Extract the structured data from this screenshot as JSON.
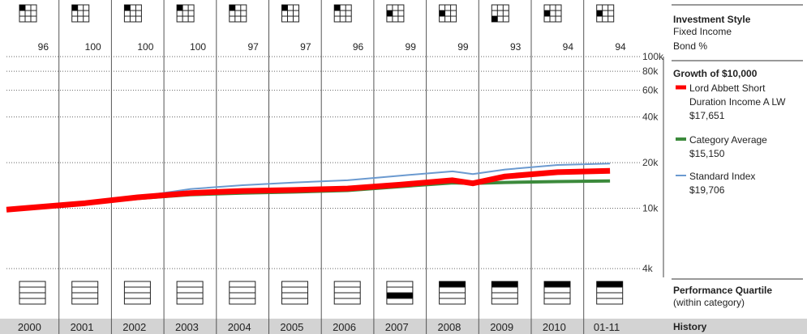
{
  "chart_data": {
    "type": "line",
    "x_labels": [
      "2000",
      "2001",
      "2002",
      "2003",
      "2004",
      "2005",
      "2006",
      "2007",
      "2008",
      "2009",
      "2010",
      "01-11"
    ],
    "y_scale": "log",
    "ylim": [
      3500,
      100000
    ],
    "y_ticks": [
      {
        "value": 100000,
        "label": "100k"
      },
      {
        "value": 80000,
        "label": "80k"
      },
      {
        "value": 60000,
        "label": "60k"
      },
      {
        "value": 40000,
        "label": "40k"
      },
      {
        "value": 20000,
        "label": "20k"
      },
      {
        "value": 10000,
        "label": "10k"
      },
      {
        "value": 4000,
        "label": "4k"
      }
    ],
    "bond_pct": [
      "96",
      "100",
      "100",
      "100",
      "97",
      "97",
      "96",
      "99",
      "99",
      "93",
      "94",
      "94"
    ],
    "style_box_cell": [
      0,
      0,
      0,
      0,
      0,
      0,
      0,
      3,
      3,
      6,
      3,
      3
    ],
    "quartile_rank": [
      0,
      0,
      0,
      0,
      0,
      0,
      0,
      3,
      1,
      1,
      1,
      1
    ],
    "series": [
      {
        "name": "Lord Abbett Short Duration Income A LW",
        "color": "#ff0000",
        "points": [
          [
            "2000",
            9800
          ],
          [
            "2001",
            10800
          ],
          [
            "2002",
            11800
          ],
          [
            "2003",
            12600
          ],
          [
            "2004",
            13000
          ],
          [
            "2005",
            13200
          ],
          [
            "2006",
            13500
          ],
          [
            "2007",
            14300
          ],
          [
            "2008",
            15300
          ],
          [
            "2008",
            14600
          ],
          [
            "2009",
            16200
          ],
          [
            "2010",
            17300
          ],
          [
            "01-11",
            17651
          ]
        ]
      },
      {
        "name": "Category Average",
        "color": "#3c8a3c",
        "points": [
          [
            "2000",
            9800
          ],
          [
            "2001",
            10750
          ],
          [
            "2002",
            11600
          ],
          [
            "2003",
            12300
          ],
          [
            "2004",
            12600
          ],
          [
            "2005",
            12800
          ],
          [
            "2006",
            13100
          ],
          [
            "2007",
            13900
          ],
          [
            "2008",
            14700
          ],
          [
            "2008",
            14600
          ],
          [
            "2009",
            14800
          ],
          [
            "2010",
            15000
          ],
          [
            "01-11",
            15150
          ]
        ]
      },
      {
        "name": "Standard Index",
        "color": "#6b9ad0",
        "points": [
          [
            "2000",
            9800
          ],
          [
            "2001",
            10900
          ],
          [
            "2002",
            11900
          ],
          [
            "2003",
            13400
          ],
          [
            "2004",
            14200
          ],
          [
            "2005",
            14800
          ],
          [
            "2006",
            15300
          ],
          [
            "2007",
            16400
          ],
          [
            "2008",
            17500
          ],
          [
            "2008",
            16800
          ],
          [
            "2009",
            18000
          ],
          [
            "2010",
            19300
          ],
          [
            "01-11",
            19706
          ]
        ]
      }
    ]
  },
  "sidebar": {
    "investment_style": {
      "title": "Investment Style",
      "line1": "Fixed Income",
      "line2": "Bond %"
    },
    "growth": {
      "title": "Growth of $10,000",
      "items": [
        {
          "line1": "Lord Abbett Short",
          "line2": "Duration Income A LW",
          "value": "$17,651",
          "color": "#ff0000"
        },
        {
          "line1": "Category Average",
          "value": "$15,150",
          "color": "#3c8a3c"
        },
        {
          "line1": "Standard Index",
          "value": "$19,706",
          "color": "#6b9ad0"
        }
      ]
    },
    "quartile": {
      "title": "Performance Quartile",
      "subtitle": "(within category)"
    },
    "history_label": "History"
  }
}
